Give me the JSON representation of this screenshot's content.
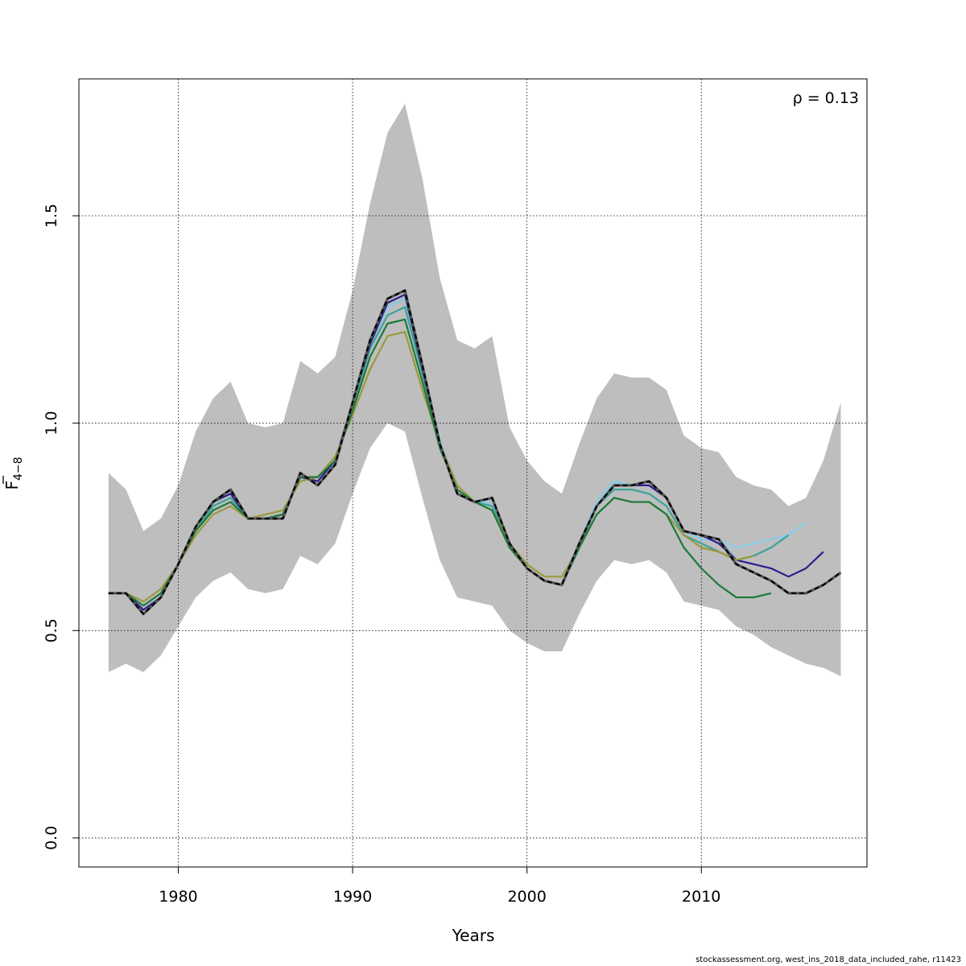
{
  "chart_data": {
    "type": "line",
    "xlabel": "Years",
    "ylabel_main": "F",
    "ylabel_sub": "4−8",
    "xlim": [
      1974.3,
      2019.5
    ],
    "ylim": [
      -0.07,
      1.83
    ],
    "x_ticks": [
      1980,
      1990,
      2000,
      2010
    ],
    "y_ticks": [
      0.0,
      0.5,
      1.0,
      1.5
    ],
    "x_tick_labels": [
      "1980",
      "1990",
      "2000",
      "2010"
    ],
    "y_tick_labels": [
      "0.0",
      "0.5",
      "1.0",
      "1.5"
    ],
    "grid": true,
    "annotation": "ρ = 0.13",
    "band": {
      "color": "#bebebe",
      "x": [
        1976,
        1977,
        1978,
        1979,
        1980,
        1981,
        1982,
        1983,
        1984,
        1985,
        1986,
        1987,
        1988,
        1989,
        1990,
        1991,
        1992,
        1993,
        1994,
        1995,
        1996,
        1997,
        1998,
        1999,
        2000,
        2001,
        2002,
        2003,
        2004,
        2005,
        2006,
        2007,
        2008,
        2009,
        2010,
        2011,
        2012,
        2013,
        2014,
        2015,
        2016,
        2017,
        2018
      ],
      "upper": [
        0.88,
        0.84,
        0.74,
        0.77,
        0.85,
        0.98,
        1.06,
        1.1,
        1.0,
        0.99,
        1.0,
        1.15,
        1.12,
        1.16,
        1.32,
        1.53,
        1.7,
        1.77,
        1.59,
        1.35,
        1.2,
        1.18,
        1.21,
        0.99,
        0.91,
        0.86,
        0.83,
        0.95,
        1.06,
        1.12,
        1.11,
        1.11,
        1.08,
        0.97,
        0.94,
        0.93,
        0.87,
        0.85,
        0.84,
        0.8,
        0.82,
        0.91,
        1.05
      ],
      "lower": [
        0.4,
        0.42,
        0.4,
        0.44,
        0.51,
        0.58,
        0.62,
        0.64,
        0.6,
        0.59,
        0.6,
        0.68,
        0.66,
        0.71,
        0.83,
        0.94,
        1.0,
        0.98,
        0.82,
        0.67,
        0.58,
        0.57,
        0.56,
        0.5,
        0.47,
        0.45,
        0.45,
        0.54,
        0.62,
        0.67,
        0.66,
        0.67,
        0.64,
        0.57,
        0.56,
        0.55,
        0.51,
        0.49,
        0.46,
        0.44,
        0.42,
        0.41,
        0.39
      ]
    },
    "series": [
      {
        "color": "#5b9bd5",
        "dashed": false,
        "x": [
          1976,
          1977,
          1978,
          1979,
          1980,
          1981,
          1982,
          1983,
          1984,
          1985,
          1986,
          1987,
          1988,
          1989,
          1990,
          1991,
          1992,
          1993,
          1994,
          1995,
          1996,
          1997,
          1998,
          1999,
          2000,
          2001,
          2002,
          2003,
          2004,
          2005,
          2006,
          2007,
          2008,
          2009,
          2010,
          2011,
          2012
        ],
        "y": [
          0.59,
          0.59,
          0.55,
          0.58,
          0.66,
          0.75,
          0.81,
          0.83,
          0.77,
          0.77,
          0.78,
          0.87,
          0.86,
          0.91,
          1.05,
          1.19,
          1.28,
          1.3,
          1.13,
          0.96,
          0.84,
          0.81,
          0.81,
          0.71,
          0.65,
          0.62,
          0.61,
          0.71,
          0.81,
          0.86,
          0.85,
          0.85,
          0.82,
          0.74,
          0.73,
          0.72,
          0.67
        ]
      },
      {
        "color": "#87ceeb",
        "dashed": false,
        "x": [
          1976,
          1977,
          1978,
          1979,
          1980,
          1981,
          1982,
          1983,
          1984,
          1985,
          1986,
          1987,
          1988,
          1989,
          1990,
          1991,
          1992,
          1993,
          1994,
          1995,
          1996,
          1997,
          1998,
          1999,
          2000,
          2001,
          2002,
          2003,
          2004,
          2005,
          2006,
          2007,
          2008,
          2009,
          2010,
          2011,
          2012,
          2013,
          2014,
          2015,
          2016
        ],
        "y": [
          0.59,
          0.59,
          0.55,
          0.58,
          0.66,
          0.75,
          0.81,
          0.83,
          0.77,
          0.77,
          0.78,
          0.87,
          0.86,
          0.91,
          1.05,
          1.19,
          1.28,
          1.3,
          1.13,
          0.96,
          0.84,
          0.81,
          0.81,
          0.71,
          0.65,
          0.62,
          0.61,
          0.71,
          0.81,
          0.86,
          0.85,
          0.85,
          0.82,
          0.74,
          0.72,
          0.72,
          0.7,
          0.71,
          0.72,
          0.73,
          0.76
        ]
      },
      {
        "color": "#3aa39a",
        "dashed": false,
        "x": [
          1976,
          1977,
          1978,
          1979,
          1980,
          1981,
          1982,
          1983,
          1984,
          1985,
          1986,
          1987,
          1988,
          1989,
          1990,
          1991,
          1992,
          1993,
          1994,
          1995,
          1996,
          1997,
          1998,
          1999,
          2000,
          2001,
          2002,
          2003,
          2004,
          2005,
          2006,
          2007,
          2008,
          2009,
          2010,
          2011,
          2012,
          2013,
          2014,
          2015
        ],
        "y": [
          0.59,
          0.59,
          0.55,
          0.58,
          0.66,
          0.74,
          0.8,
          0.82,
          0.77,
          0.77,
          0.78,
          0.87,
          0.87,
          0.91,
          1.04,
          1.18,
          1.26,
          1.28,
          1.12,
          0.95,
          0.84,
          0.81,
          0.8,
          0.71,
          0.65,
          0.62,
          0.61,
          0.7,
          0.8,
          0.84,
          0.84,
          0.83,
          0.8,
          0.73,
          0.71,
          0.69,
          0.67,
          0.68,
          0.7,
          0.73
        ]
      },
      {
        "color": "#2e1a8c",
        "dashed": false,
        "x": [
          1976,
          1977,
          1978,
          1979,
          1980,
          1981,
          1982,
          1983,
          1984,
          1985,
          1986,
          1987,
          1988,
          1989,
          1990,
          1991,
          1992,
          1993,
          1994,
          1995,
          1996,
          1997,
          1998,
          1999,
          2000,
          2001,
          2002,
          2003,
          2004,
          2005,
          2006,
          2007,
          2008,
          2009,
          2010,
          2011,
          2012,
          2013,
          2014,
          2015,
          2016,
          2017
        ],
        "y": [
          0.59,
          0.59,
          0.55,
          0.58,
          0.66,
          0.75,
          0.81,
          0.83,
          0.77,
          0.77,
          0.78,
          0.87,
          0.86,
          0.91,
          1.05,
          1.19,
          1.29,
          1.31,
          1.13,
          0.95,
          0.83,
          0.81,
          0.82,
          0.71,
          0.65,
          0.62,
          0.61,
          0.71,
          0.8,
          0.85,
          0.85,
          0.85,
          0.82,
          0.74,
          0.73,
          0.71,
          0.67,
          0.66,
          0.65,
          0.63,
          0.65,
          0.69
        ]
      },
      {
        "color": "#9a9a3c",
        "dashed": false,
        "x": [
          1976,
          1977,
          1978,
          1979,
          1980,
          1981,
          1982,
          1983,
          1984,
          1985,
          1986,
          1987,
          1988,
          1989,
          1990,
          1991,
          1992,
          1993,
          1994,
          1995,
          1996,
          1997,
          1998,
          1999,
          2000,
          2001,
          2002,
          2003,
          2004,
          2005,
          2006,
          2007,
          2008,
          2009,
          2010,
          2011,
          2012,
          2013
        ],
        "y": [
          0.59,
          0.59,
          0.57,
          0.6,
          0.66,
          0.73,
          0.78,
          0.8,
          0.77,
          0.78,
          0.79,
          0.86,
          0.87,
          0.92,
          1.02,
          1.13,
          1.21,
          1.22,
          1.08,
          0.95,
          0.85,
          0.81,
          0.79,
          0.71,
          0.66,
          0.63,
          0.63,
          0.7,
          0.78,
          0.82,
          0.81,
          0.81,
          0.78,
          0.73,
          0.7,
          0.69,
          0.67,
          0.68
        ]
      },
      {
        "color": "#1b7a3a",
        "dashed": false,
        "x": [
          1976,
          1977,
          1978,
          1979,
          1980,
          1981,
          1982,
          1983,
          1984,
          1985,
          1986,
          1987,
          1988,
          1989,
          1990,
          1991,
          1992,
          1993,
          1994,
          1995,
          1996,
          1997,
          1998,
          1999,
          2000,
          2001,
          2002,
          2003,
          2004,
          2005,
          2006,
          2007,
          2008,
          2009,
          2010,
          2011,
          2012,
          2013,
          2014
        ],
        "y": [
          0.59,
          0.59,
          0.56,
          0.59,
          0.66,
          0.74,
          0.79,
          0.81,
          0.77,
          0.77,
          0.78,
          0.87,
          0.87,
          0.91,
          1.03,
          1.16,
          1.24,
          1.25,
          1.1,
          0.94,
          0.84,
          0.81,
          0.79,
          0.7,
          0.65,
          0.62,
          0.61,
          0.7,
          0.78,
          0.82,
          0.81,
          0.81,
          0.78,
          0.7,
          0.65,
          0.61,
          0.58,
          0.58,
          0.59
        ]
      },
      {
        "color": "#000000",
        "dashed": true,
        "x": [
          1976,
          1977,
          1978,
          1979,
          1980,
          1981,
          1982,
          1983,
          1984,
          1985,
          1986,
          1987,
          1988,
          1989,
          1990,
          1991,
          1992,
          1993,
          1994,
          1995,
          1996,
          1997,
          1998,
          1999,
          2000,
          2001,
          2002,
          2003,
          2004,
          2005,
          2006,
          2007,
          2008,
          2009,
          2010,
          2011,
          2012,
          2013,
          2014,
          2015,
          2016,
          2017,
          2018
        ],
        "y": [
          0.59,
          0.59,
          0.54,
          0.58,
          0.66,
          0.75,
          0.81,
          0.84,
          0.77,
          0.77,
          0.77,
          0.88,
          0.85,
          0.9,
          1.05,
          1.2,
          1.3,
          1.32,
          1.14,
          0.95,
          0.83,
          0.81,
          0.82,
          0.71,
          0.65,
          0.62,
          0.61,
          0.71,
          0.8,
          0.85,
          0.85,
          0.86,
          0.82,
          0.74,
          0.73,
          0.72,
          0.66,
          0.64,
          0.62,
          0.59,
          0.59,
          0.61,
          0.64
        ]
      }
    ]
  },
  "footer": {
    "credit": "stockassessment.org, west_ins_2018_data_included_rahe, r11423"
  }
}
